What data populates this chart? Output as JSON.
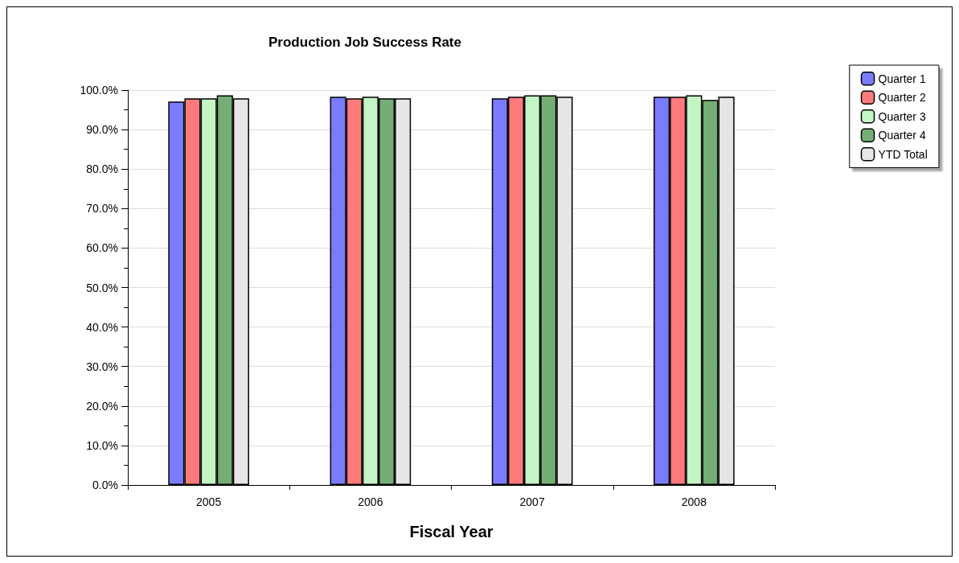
{
  "chart_data": {
    "type": "bar",
    "title": "Production Job Success Rate",
    "xlabel": "Fiscal Year",
    "categories": [
      "2005",
      "2006",
      "2007",
      "2008"
    ],
    "series": [
      {
        "name": "Quarter 1",
        "color": "#7b7bff",
        "values": [
          97.1,
          98.3,
          97.9,
          98.3
        ]
      },
      {
        "name": "Quarter 2",
        "color": "#ff7b7b",
        "values": [
          97.9,
          97.9,
          98.3,
          98.3
        ]
      },
      {
        "name": "Quarter 3",
        "color": "#c4f5c4",
        "values": [
          97.9,
          98.3,
          98.7,
          98.7
        ]
      },
      {
        "name": "Quarter 4",
        "color": "#75ae75",
        "values": [
          98.7,
          97.9,
          98.7,
          97.5
        ]
      },
      {
        "name": "YTD Total",
        "color": "#e6e6e6",
        "values": [
          97.9,
          97.9,
          98.3,
          98.3
        ]
      }
    ],
    "ylim": [
      0,
      100
    ],
    "yticks": [
      {
        "value": 0,
        "label": "0.0%"
      },
      {
        "value": 10,
        "label": "10.0%"
      },
      {
        "value": 20,
        "label": "20.0%"
      },
      {
        "value": 30,
        "label": "30.0%"
      },
      {
        "value": 40,
        "label": "40.0%"
      },
      {
        "value": 50,
        "label": "50.0%"
      },
      {
        "value": 60,
        "label": "60.0%"
      },
      {
        "value": 70,
        "label": "70.0%"
      },
      {
        "value": 80,
        "label": "80.0%"
      },
      {
        "value": 90,
        "label": "90.0%"
      },
      {
        "value": 100,
        "label": "100.0%"
      }
    ],
    "grid": "y",
    "legend": "top right"
  }
}
